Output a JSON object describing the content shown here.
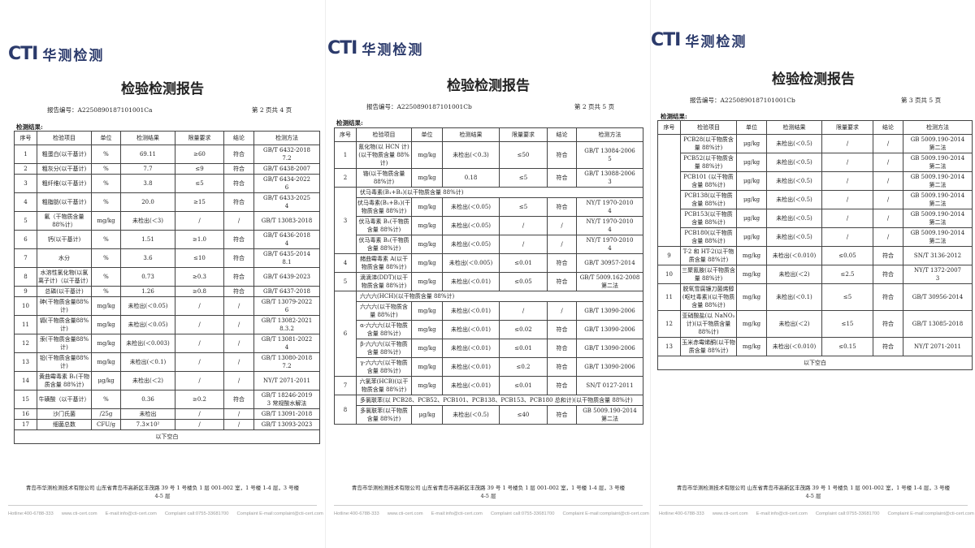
{
  "logo": {
    "brand": "CTI",
    "name_cn": "华测检测"
  },
  "common": {
    "title": "检验检测报告",
    "results_label": "检测结果:",
    "columns": [
      "序号",
      "检验项目",
      "单位",
      "检测结果",
      "限量要求",
      "结论",
      "检测方法"
    ],
    "blank_below": "以下空白",
    "footer_company": "青岛市华测检测技术有限公司 山东省青岛市高新区丰茂路 39 号 1 号楼负 1 层 001-002 室，1 号楼 1-4 层，3 号楼 4-5 层",
    "footer_contacts": [
      "Hotline:400-6788-333",
      "www.cti-cert.com",
      "E-mail:info@cti-cert.com",
      "Complaint call:0755-33681700",
      "Complaint E-mail:complaint@cti-cert.com"
    ]
  },
  "pages": [
    {
      "report_no": "报告编号：A2250890187101001Ca",
      "page_no": "第 2 页共 4 页",
      "rows": [
        {
          "seq": "1",
          "item": "粗蛋白(以干基计)",
          "unit": "%",
          "result": "69.11",
          "limit": "≥60",
          "conclusion": "符合",
          "method": "GB/T 6432-2018\n7.2"
        },
        {
          "seq": "2",
          "item": "粗灰分(以干基计)",
          "unit": "%",
          "result": "7.7",
          "limit": "≤9",
          "conclusion": "符合",
          "method": "GB/T 6438-2007"
        },
        {
          "seq": "3",
          "item": "粗纤维(以干基计)",
          "unit": "%",
          "result": "3.8",
          "limit": "≤5",
          "conclusion": "符合",
          "method": "GB/T 6434-2022\n6"
        },
        {
          "seq": "4",
          "item": "粗脂肪(以干基计)",
          "unit": "%",
          "result": "20.0",
          "limit": "≥15",
          "conclusion": "符合",
          "method": "GB/T 6433-2025\n4"
        },
        {
          "seq": "5",
          "item": "氟（干物质含量88%计）",
          "unit": "mg/kg",
          "result": "未检出(＜3)",
          "limit": "/",
          "conclusion": "/",
          "method": "GB/T 13083-2018"
        },
        {
          "seq": "6",
          "item": "钙(以干基计)",
          "unit": "%",
          "result": "1.51",
          "limit": "≥1.0",
          "conclusion": "符合",
          "method": "GB/T 6436-2018\n4"
        },
        {
          "seq": "7",
          "item": "水分",
          "unit": "%",
          "result": "3.6",
          "limit": "≤10",
          "conclusion": "符合",
          "method": "GB/T 6435-2014\n8.1"
        },
        {
          "seq": "8",
          "item": "水溶性氯化物(以氯离子计)（以干基计）",
          "unit": "%",
          "result": "0.73",
          "limit": "≥0.3",
          "conclusion": "符合",
          "method": "GB/T 6439-2023"
        },
        {
          "seq": "9",
          "item": "总磷(以干基计)",
          "unit": "%",
          "result": "1.26",
          "limit": "≥0.8",
          "conclusion": "符合",
          "method": "GB/T 6437-2018"
        },
        {
          "seq": "10",
          "item": "砷(干物质含量88%计)",
          "unit": "mg/kg",
          "result": "未检出(＜0.05)",
          "limit": "/",
          "conclusion": "/",
          "method": "GB/T 13079-2022\n6"
        },
        {
          "seq": "11",
          "item": "镉(干物质含量88%计)",
          "unit": "mg/kg",
          "result": "未检出(＜0.05)",
          "limit": "/",
          "conclusion": "/",
          "method": "GB/T 13082-2021\n8.3.2"
        },
        {
          "seq": "12",
          "item": "汞(干物质含量88%计)",
          "unit": "mg/kg",
          "result": "未检出(＜0.003)",
          "limit": "/",
          "conclusion": "/",
          "method": "GB/T 13081-2022\n4"
        },
        {
          "seq": "13",
          "item": "铅(干物质含量88%计)",
          "unit": "mg/kg",
          "result": "未检出(＜0.1)",
          "limit": "/",
          "conclusion": "/",
          "method": "GB/T 13080-2018\n7.2"
        },
        {
          "seq": "14",
          "item": "黄曲霉毒素 B₁(干物质含量 88%计)",
          "unit": "μg/kg",
          "result": "未检出(＜2)",
          "limit": "/",
          "conclusion": "/",
          "method": "NY/T 2071-2011"
        },
        {
          "seq": "15",
          "item": "牛磺酸（以干基计）",
          "unit": "%",
          "result": "0.36",
          "limit": "≥0.2",
          "conclusion": "符合",
          "method": "GB/T 18246-2019\n3 常规酸水解法"
        },
        {
          "seq": "16",
          "item": "沙门氏菌",
          "unit": "/25g",
          "result": "未检出",
          "limit": "/",
          "conclusion": "/",
          "method": "GB/T 13091-2018"
        },
        {
          "seq": "17",
          "item": "细菌总数",
          "unit": "CFU/g",
          "result": "7.3×10²",
          "limit": "/",
          "conclusion": "/",
          "method": "GB/T 13093-2023"
        }
      ],
      "blank": true
    },
    {
      "report_no": "报告编号：A2250890187101001Cb",
      "page_no": "第 2 页共 5 页",
      "rows": [
        {
          "seq": "1",
          "item": "氰化物(以 HCN 计)(以干物质含量 88%计)",
          "unit": "mg/kg",
          "result": "未检出(＜0.3)",
          "limit": "≤50",
          "conclusion": "符合",
          "method": "GB/T 13084-2006\n5"
        },
        {
          "seq": "2",
          "item": "铬(以干物质含量88%计)",
          "unit": "mg/kg",
          "result": "0.18",
          "limit": "≤5",
          "conclusion": "符合",
          "method": "GB/T 13088-2006\n3"
        },
        {
          "seq": "3",
          "header": "伏马毒素(B₁+B₂)(以干物质含量 88%计)",
          "subrows": [
            {
              "item": "伏马毒素(B₁+B₂)(干物质含量 88%计)",
              "unit": "mg/kg",
              "result": "未检出(＜0.05)",
              "limit": "≤5",
              "conclusion": "符合",
              "method": "NY/T 1970-2010\n4"
            },
            {
              "item": "伏马毒素 B₁(干物质含量 88%计)",
              "unit": "mg/kg",
              "result": "未检出(＜0.05)",
              "limit": "/",
              "conclusion": "/",
              "method": "NY/T 1970-2010\n4"
            },
            {
              "item": "伏马毒素 B₂(干物质含量 88%计)",
              "unit": "mg/kg",
              "result": "未检出(＜0.05)",
              "limit": "/",
              "conclusion": "/",
              "method": "NY/T 1970-2010\n4"
            }
          ]
        },
        {
          "seq": "4",
          "item": "赭曲霉毒素 A(以干物质含量 88%计)",
          "unit": "mg/kg",
          "result": "未检出(＜0.005)",
          "limit": "≤0.01",
          "conclusion": "符合",
          "method": "GB/T 30957-2014"
        },
        {
          "seq": "5",
          "item": "滴滴涕(DDT)(以干物质含量 88%计)",
          "unit": "mg/kg",
          "result": "未检出(＜0.01)",
          "limit": "≤0.05",
          "conclusion": "符合",
          "method": "GB/T 5009.162-2008\n第二法"
        },
        {
          "seq": "6",
          "header": "六六六(HCH)(以干物质含量 88%计)",
          "subrows": [
            {
              "item": "六六六(以干物质含量 88%计)",
              "unit": "mg/kg",
              "result": "未检出(＜0.01)",
              "limit": "/",
              "conclusion": "/",
              "method": "GB/T 13090-2006"
            },
            {
              "item": "α-六六六(以干物质含量 88%计)",
              "unit": "mg/kg",
              "result": "未检出(＜0.01)",
              "limit": "≤0.02",
              "conclusion": "符合",
              "method": "GB/T 13090-2006"
            },
            {
              "item": "β-六六六(以干物质含量 88%计)",
              "unit": "mg/kg",
              "result": "未检出(＜0.01)",
              "limit": "≤0.01",
              "conclusion": "符合",
              "method": "GB/T 13090-2006"
            },
            {
              "item": "γ-六六六(以干物质含量 88%计)",
              "unit": "mg/kg",
              "result": "未检出(＜0.01)",
              "limit": "≤0.2",
              "conclusion": "符合",
              "method": "GB/T 13090-2006"
            }
          ]
        },
        {
          "seq": "7",
          "item": "六氯苯(HCB)(以干物质含量 88%计)",
          "unit": "mg/kg",
          "result": "未检出(＜0.01)",
          "limit": "≤0.01",
          "conclusion": "符合",
          "method": "SN/T 0127-2011"
        },
        {
          "seq": "8",
          "header": "多氯联苯(以 PCB28、PCB52、PCB101、PCB138、PCB153、PCB180 总和计)(以干物质含量 88%计)",
          "subrows": [
            {
              "item": "多氯联苯(以干物质含量 88%计)",
              "unit": "μg/kg",
              "result": "未检出(＜0.5)",
              "limit": "≤40",
              "conclusion": "符合",
              "method": "GB 5009.190-2014\n第二法"
            }
          ]
        }
      ],
      "blank": false
    },
    {
      "report_no": "报告编号：A2250890187101001Cb",
      "page_no": "第 3 页共 5 页",
      "rows": [
        {
          "seq": "",
          "subrows": [
            {
              "item": "PCB28(以干物质含量 88%计)",
              "unit": "μg/kg",
              "result": "未检出(＜0.5)",
              "limit": "/",
              "conclusion": "/",
              "method": "GB 5009.190-2014\n第二法"
            },
            {
              "item": "PCB52(以干物质含量 88%计)",
              "unit": "μg/kg",
              "result": "未检出(＜0.5)",
              "limit": "/",
              "conclusion": "/",
              "method": "GB 5009.190-2014\n第二法"
            },
            {
              "item": "PCB101 (以干物质含量 88%计)",
              "unit": "μg/kg",
              "result": "未检出(＜0.5)",
              "limit": "/",
              "conclusion": "/",
              "method": "GB 5009.190-2014\n第二法"
            },
            {
              "item": "PCB138(以干物质含量 88%计)",
              "unit": "μg/kg",
              "result": "未检出(＜0.5)",
              "limit": "/",
              "conclusion": "/",
              "method": "GB 5009.190-2014\n第二法"
            },
            {
              "item": "PCB153(以干物质含量 88%计)",
              "unit": "μg/kg",
              "result": "未检出(＜0.5)",
              "limit": "/",
              "conclusion": "/",
              "method": "GB 5009.190-2014\n第二法"
            },
            {
              "item": "PCB180(以干物质含量 88%计)",
              "unit": "μg/kg",
              "result": "未检出(＜0.5)",
              "limit": "/",
              "conclusion": "/",
              "method": "GB 5009.190-2014\n第二法"
            }
          ]
        },
        {
          "seq": "9",
          "item": "T-2 和 HT-2(以干物质含量 88%计)",
          "unit": "mg/kg",
          "result": "未检出(＜0.010)",
          "limit": "≤0.05",
          "conclusion": "符合",
          "method": "SN/T 3136-2012"
        },
        {
          "seq": "10",
          "item": "三聚氰胺(以干物质含量 88%计)",
          "unit": "mg/kg",
          "result": "未检出(＜2)",
          "limit": "≤2.5",
          "conclusion": "符合",
          "method": "NY/T 1372-2007\n3"
        },
        {
          "seq": "11",
          "item": "脱氧雪腐镰刀菌烯醇(呕吐毒素)(以干物质含量 88%计)",
          "unit": "mg/kg",
          "result": "未检出(＜0.1)",
          "limit": "≤5",
          "conclusion": "符合",
          "method": "GB/T 30956-2014"
        },
        {
          "seq": "12",
          "item": "亚硝酸盐(以 NaNO₂计)(以干物质含量 88%计)",
          "unit": "mg/kg",
          "result": "未检出(＜2)",
          "limit": "≤15",
          "conclusion": "符合",
          "method": "GB/T 13085-2018"
        },
        {
          "seq": "13",
          "item": "玉米赤霉烯酮(以干物质含量 88%计)",
          "unit": "mg/kg",
          "result": "未检出(＜0.010)",
          "limit": "≤0.15",
          "conclusion": "符合",
          "method": "NY/T 2071-2011"
        }
      ],
      "blank": true
    }
  ]
}
